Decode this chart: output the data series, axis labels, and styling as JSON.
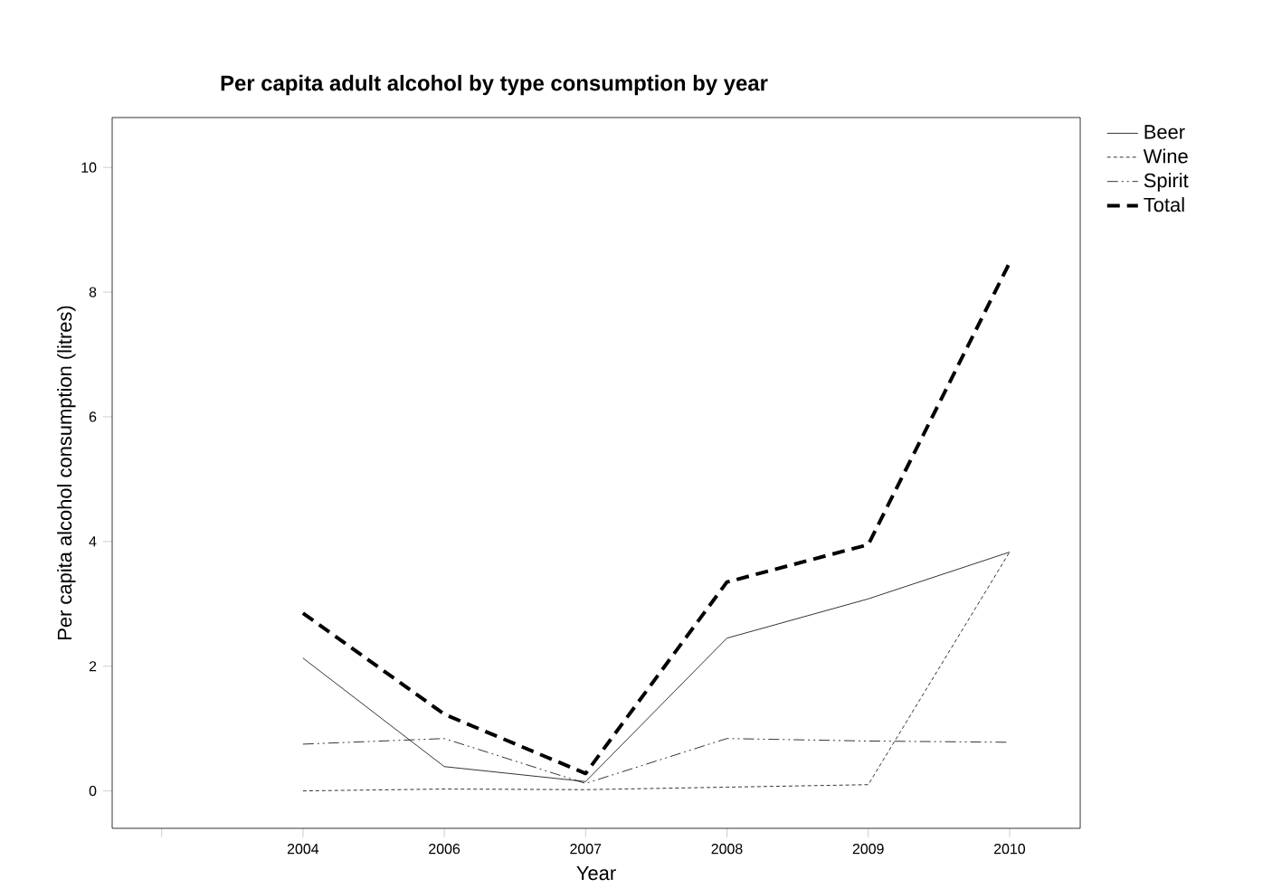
{
  "chart_data": {
    "type": "line",
    "title": "Per capita adult alcohol by type consumption by year",
    "xlabel": "Year",
    "ylabel": "Per capita alcohol consumption (litres)",
    "categories": [
      null,
      "2004",
      "2006",
      "2007",
      "2008",
      "2009",
      "2010"
    ],
    "series": [
      {
        "name": "Beer",
        "color": "#000000",
        "line_style": "solid",
        "values": [
          null,
          2.13,
          0.39,
          0.15,
          2.45,
          3.08,
          3.83
        ]
      },
      {
        "name": "Wine",
        "color": "#000000",
        "line_style": "dotted",
        "values": [
          null,
          0.0,
          0.03,
          0.02,
          0.06,
          0.1,
          3.83
        ]
      },
      {
        "name": "Spirit",
        "color": "#000000",
        "line_style": "dashdot",
        "values": [
          null,
          0.75,
          0.84,
          0.12,
          0.84,
          0.8,
          0.78
        ]
      },
      {
        "name": "Total",
        "color": "#000000",
        "line_style": "dashed",
        "values": [
          null,
          2.85,
          1.23,
          0.28,
          3.35,
          3.95,
          8.47
        ]
      }
    ],
    "ylim": [
      -0.6,
      10.8
    ],
    "yticks": [
      0,
      2,
      4,
      6,
      8,
      10
    ],
    "grid": false,
    "legend": "top right",
    "marker": "none"
  }
}
